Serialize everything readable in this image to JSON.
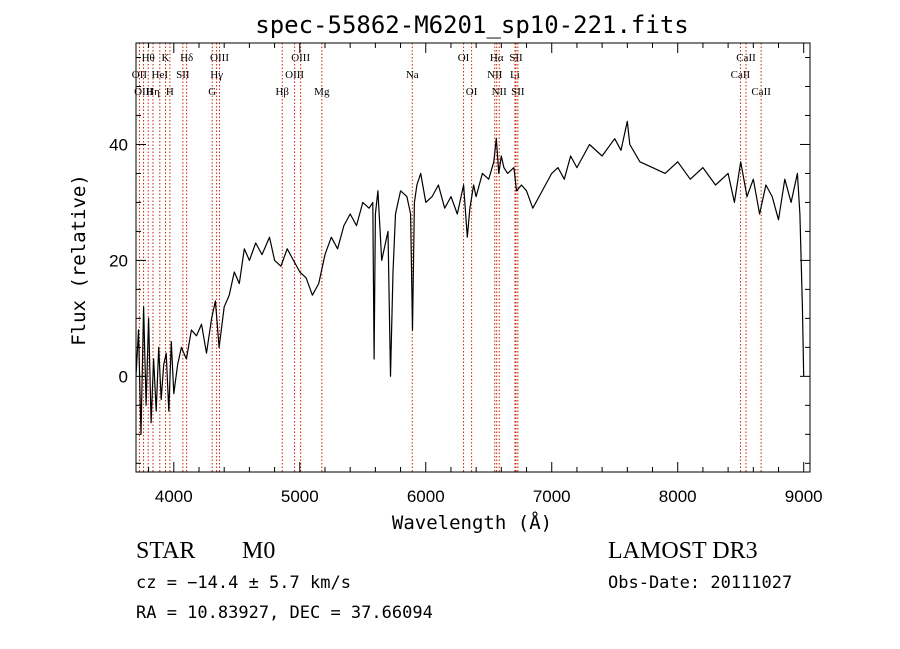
{
  "chart_data": {
    "type": "line",
    "title": "spec-55862-M6201_sp10-221.fits",
    "xlabel": "Wavelength (Å)",
    "ylabel": "Flux (relative)",
    "xlim": [
      3700,
      9050
    ],
    "ylim": [
      -16.5,
      57.5
    ],
    "x_ticks": [
      4000,
      5000,
      6000,
      7000,
      8000,
      9000
    ],
    "y_ticks": [
      0,
      20,
      40
    ],
    "x_tick_labels": [
      "4000",
      "5000",
      "6000",
      "7000",
      "8000",
      "9000"
    ],
    "y_tick_labels": [
      "0",
      "20",
      "40"
    ],
    "series": [
      {
        "name": "flux",
        "x": [
          3700,
          3720,
          3740,
          3760,
          3780,
          3800,
          3820,
          3840,
          3860,
          3880,
          3900,
          3920,
          3940,
          3960,
          3980,
          4000,
          4030,
          4060,
          4100,
          4140,
          4180,
          4220,
          4260,
          4300,
          4330,
          4360,
          4400,
          4440,
          4480,
          4520,
          4560,
          4600,
          4650,
          4700,
          4760,
          4800,
          4850,
          4900,
          4950,
          5000,
          5050,
          5100,
          5150,
          5200,
          5250,
          5300,
          5350,
          5400,
          5450,
          5500,
          5550,
          5580,
          5590,
          5600,
          5620,
          5650,
          5700,
          5720,
          5740,
          5760,
          5780,
          5800,
          5850,
          5880,
          5895,
          5910,
          5930,
          5960,
          6000,
          6050,
          6100,
          6150,
          6200,
          6250,
          6300,
          6330,
          6350,
          6380,
          6400,
          6450,
          6500,
          6540,
          6560,
          6580,
          6600,
          6620,
          6650,
          6700,
          6720,
          6760,
          6800,
          6850,
          6900,
          6950,
          7000,
          7050,
          7100,
          7150,
          7200,
          7300,
          7400,
          7500,
          7550,
          7600,
          7620,
          7700,
          7800,
          7900,
          8000,
          8100,
          8200,
          8300,
          8400,
          8450,
          8500,
          8550,
          8600,
          8650,
          8700,
          8750,
          8800,
          8850,
          8900,
          8950,
          8970,
          8990,
          9000
        ],
        "y": [
          0,
          8,
          -10,
          12,
          -5,
          10,
          -8,
          3,
          -6,
          5,
          -4,
          2,
          4,
          -6,
          6,
          -3,
          2,
          5,
          3,
          8,
          7,
          9,
          4,
          10,
          13,
          5,
          12,
          14,
          18,
          16,
          22,
          20,
          23,
          21,
          24,
          20,
          19,
          22,
          20,
          18,
          17,
          14,
          16,
          21,
          24,
          22,
          26,
          28,
          26,
          30,
          29,
          30,
          3,
          28,
          32,
          20,
          25,
          0,
          18,
          28,
          30,
          32,
          31,
          28,
          8,
          30,
          33,
          35,
          30,
          31,
          33,
          29,
          31,
          28,
          33,
          24,
          29,
          33,
          31,
          35,
          34,
          37,
          41,
          35,
          38,
          36,
          35,
          36,
          32,
          33,
          32,
          29,
          31,
          33,
          35,
          36,
          34,
          38,
          36,
          40,
          38,
          41,
          39,
          44,
          40,
          37,
          36,
          35,
          37,
          34,
          36,
          33,
          35,
          30,
          37,
          31,
          34,
          28,
          33,
          31,
          27,
          34,
          30,
          35,
          28,
          12,
          0
        ]
      }
    ],
    "line_markers": [
      {
        "label": "Hθ",
        "x": 3797,
        "row": 1
      },
      {
        "label": "OII",
        "x": 3727,
        "row": 2
      },
      {
        "label": "OIII",
        "x": 3760,
        "row": 3
      },
      {
        "label": "K",
        "x": 3934,
        "row": 1
      },
      {
        "label": "HeI",
        "x": 3889,
        "row": 2
      },
      {
        "label": "Hη",
        "x": 3835,
        "row": 3
      },
      {
        "label": "Hδ",
        "x": 4102,
        "row": 1
      },
      {
        "label": "SII",
        "x": 4072,
        "row": 2
      },
      {
        "label": "H",
        "x": 3969,
        "row": 3
      },
      {
        "label": "OIII",
        "x": 4363,
        "row": 1
      },
      {
        "label": "Hγ",
        "x": 4340,
        "row": 2
      },
      {
        "label": "G",
        "x": 4305,
        "row": 3
      },
      {
        "label": "OIII",
        "x": 5007,
        "row": 1
      },
      {
        "label": "OIII",
        "x": 4959,
        "row": 2
      },
      {
        "label": "Hβ",
        "x": 4861,
        "row": 3
      },
      {
        "label": "Mg",
        "x": 5175,
        "row": 3
      },
      {
        "label": "Na",
        "x": 5893,
        "row": 2
      },
      {
        "label": "OI",
        "x": 6300,
        "row": 1
      },
      {
        "label": "OI",
        "x": 6364,
        "row": 3
      },
      {
        "label": "Hα",
        "x": 6563,
        "row": 1
      },
      {
        "label": "SII",
        "x": 6716,
        "row": 1
      },
      {
        "label": "NII",
        "x": 6548,
        "row": 2
      },
      {
        "label": "Li",
        "x": 6708,
        "row": 2
      },
      {
        "label": "NII",
        "x": 6583,
        "row": 3
      },
      {
        "label": "SII",
        "x": 6731,
        "row": 3
      },
      {
        "label": "CaII",
        "x": 8542,
        "row": 1
      },
      {
        "label": "CaII",
        "x": 8498,
        "row": 2
      },
      {
        "label": "CaII",
        "x": 8662,
        "row": 3
      }
    ]
  },
  "info": {
    "class_label": "STAR",
    "subclass_label": "M0",
    "survey": "LAMOST DR3",
    "cz_text": "cz = −14.4 ± 5.7 km/s",
    "obs_date_text": "Obs-Date: 20111027",
    "coords_text": "RA =  10.83927, DEC =  37.66094"
  },
  "colors": {
    "axis": "#000000",
    "spectrum": "#000000",
    "marker_line": "#cc2200",
    "background": "#ffffff"
  }
}
